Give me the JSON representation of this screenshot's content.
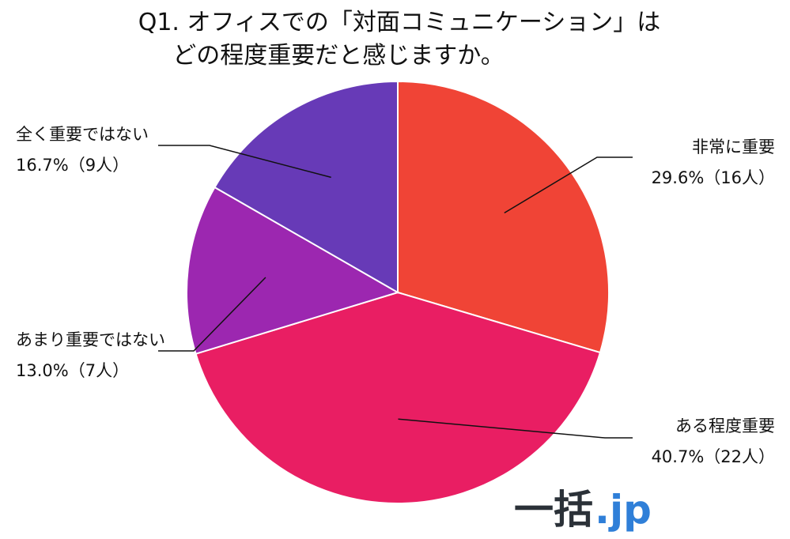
{
  "chart_data": {
    "type": "pie",
    "title_lines": [
      "Q1. オフィスでの「対面コミュニケーション」は",
      "どの程度重要だと感じますか。"
    ],
    "slices": [
      {
        "label": "非常に重要",
        "value": 29.6,
        "value_text": "29.6%（16人）",
        "color": "#f04436"
      },
      {
        "label": "ある程度重要",
        "value": 40.7,
        "value_text": "40.7%（22人）",
        "color": "#e91e63"
      },
      {
        "label": "あまり重要ではない",
        "value": 13.0,
        "value_text": "13.0%（7人）",
        "color": "#9c27b0"
      },
      {
        "label": "全く重要ではない",
        "value": 16.7,
        "value_text": "16.7%（9人）",
        "color": "#673ab7"
      }
    ],
    "start_angle_deg": 0,
    "direction": "clockwise"
  },
  "logo": {
    "main": "一括",
    "suffix": ".jp"
  }
}
